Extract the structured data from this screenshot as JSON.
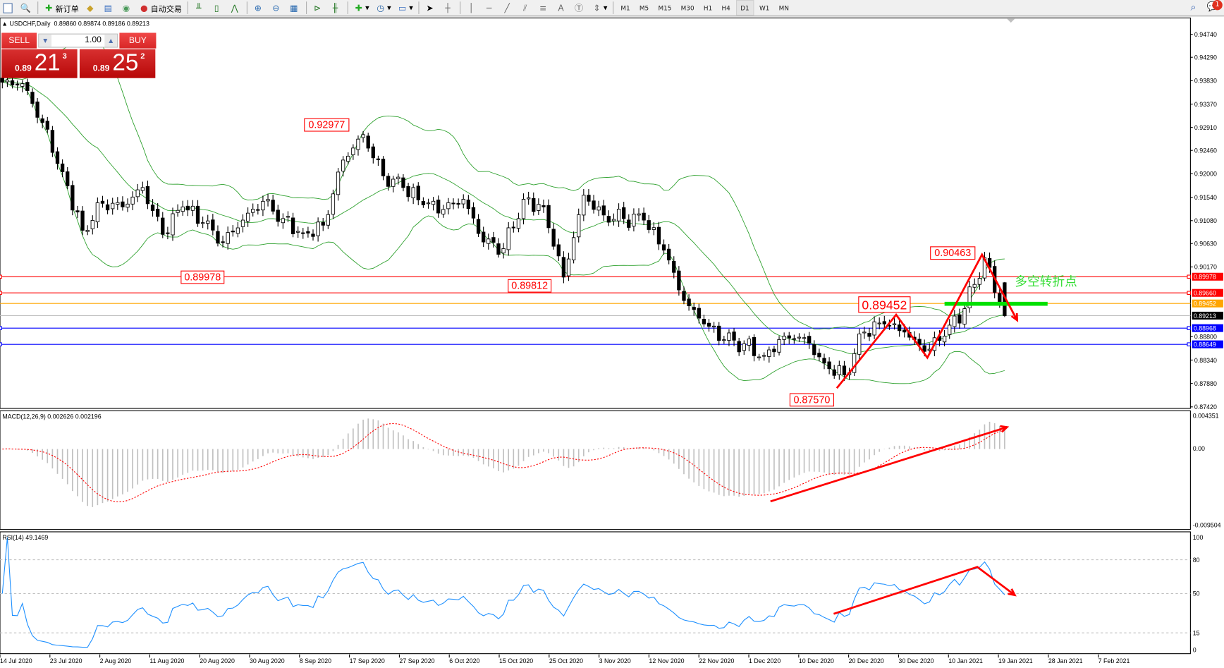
{
  "toolbar": {
    "items": [
      {
        "icon": "market-watch-icon",
        "label": ""
      },
      {
        "icon": "navigator-icon",
        "label": ""
      },
      {
        "icon": "new-order-icon",
        "label": "新订单"
      },
      {
        "icon": "metaeditor-icon",
        "label": ""
      },
      {
        "icon": "terminal-icon",
        "label": ""
      },
      {
        "icon": "signals-icon",
        "label": ""
      },
      {
        "icon": "auto-trading-icon",
        "label": "自动交易"
      }
    ],
    "chart_tools": [
      "bar-chart-icon",
      "candlestick-icon",
      "line-chart-icon",
      "zoom-in-icon",
      "zoom-out-icon",
      "tile-windows-icon",
      "chart-shift-icon",
      "autoscroll-icon",
      "indicators-icon",
      "periods-icon",
      "templates-icon",
      "cursor-icon",
      "crosshair-icon",
      "vertical-line-icon",
      "horizontal-line-icon",
      "trendline-icon",
      "equidistant-channel-icon",
      "fibonacci-icon",
      "text-icon",
      "text-label-icon",
      "arrows-icon"
    ],
    "timeframes": [
      "M1",
      "M5",
      "M15",
      "M30",
      "H1",
      "H4",
      "D1",
      "W1",
      "MN"
    ],
    "active_timeframe": "D1",
    "notifications": "1"
  },
  "chart": {
    "title": "USDCHF,Daily",
    "ohlc": "0.89860 0.89874 0.89186 0.89213",
    "symbol": "USDCHF",
    "period": "Daily"
  },
  "trade_panel": {
    "sell_label": "SELL",
    "buy_label": "BUY",
    "lot": "1.00",
    "sell_price": {
      "prefix": "0.89",
      "big": "21",
      "sup": "3"
    },
    "buy_price": {
      "prefix": "0.89",
      "big": "25",
      "sup": "2"
    },
    "color": "#d82626"
  },
  "macd": {
    "title": "MACD(12,26,9) 0.002626 0.002196",
    "axis_labels": [
      "0.004351",
      "0.00",
      "-0.009504"
    ]
  },
  "rsi": {
    "title": "RSI(14) 49.1469",
    "axis_labels": [
      "100",
      "80",
      "50",
      "15",
      "0"
    ]
  },
  "chart_data": {
    "type": "candlestick",
    "price_axis_labels": [
      "0.94740",
      "0.94290",
      "0.93830",
      "0.93370",
      "0.92910",
      "0.92460",
      "0.92000",
      "0.91540",
      "0.91080",
      "0.90630",
      "0.90170",
      "0.88800",
      "0.88340",
      "0.87880",
      "0.87420"
    ],
    "ylim": [
      0.8742,
      0.9474
    ],
    "date_labels": [
      "14 Jul 2020",
      "23 Jul 2020",
      "2 Aug 2020",
      "11 Aug 2020",
      "20 Aug 2020",
      "30 Aug 2020",
      "8 Sep 2020",
      "17 Sep 2020",
      "27 Sep 2020",
      "6 Oct 2020",
      "15 Oct 2020",
      "25 Oct 2020",
      "3 Nov 2020",
      "12 Nov 2020",
      "22 Nov 2020",
      "1 Dec 2020",
      "10 Dec 2020",
      "20 Dec 2020",
      "30 Dec 2020",
      "10 Jan 2021",
      "19 Jan 2021",
      "28 Jan 2021",
      "7 Feb 2021"
    ],
    "approx_closes_every_4_bars": [
      0.938,
      0.9377,
      0.9301,
      0.9204,
      0.9089,
      0.9142,
      0.9135,
      0.9173,
      0.9081,
      0.9135,
      0.9104,
      0.9066,
      0.9109,
      0.9146,
      0.9112,
      0.9084,
      0.9099,
      0.9227,
      0.9277,
      0.9196,
      0.9173,
      0.9139,
      0.913,
      0.915,
      0.9066,
      0.9053,
      0.915,
      0.9135,
      0.8997,
      0.9158,
      0.9119,
      0.9112,
      0.9109,
      0.905,
      0.8951,
      0.8905,
      0.8874,
      0.8866,
      0.8843,
      0.8881,
      0.8878,
      0.8828,
      0.8805,
      0.8889,
      0.8905,
      0.8889,
      0.8851,
      0.8881,
      0.8935,
      0.9035,
      0.8921
    ],
    "last_bar": {
      "open": 0.8986,
      "high": 0.89874,
      "low": 0.89186,
      "close": 0.89213
    },
    "indicators": [
      "Bollinger Bands(20,2)",
      "MACD(12,26,9)",
      "RSI(14)"
    ],
    "colors": {
      "bullish": "#ffffff",
      "bearish": "#000000",
      "bands": "#2ca02c",
      "macd_hist": "#c0c0c0",
      "macd_signal": "#ff0000",
      "rsi": "#1e90ff"
    }
  },
  "levels": [
    {
      "price": "0.89978",
      "color": "#ff0000"
    },
    {
      "price": "0.89660",
      "color": "#ff0000"
    },
    {
      "price": "0.89452",
      "color": "#ffa500"
    },
    {
      "price": "0.89213",
      "color": "#000000"
    },
    {
      "price": "0.88968",
      "color": "#0000ff"
    },
    {
      "price": "0.88649",
      "color": "#0000ff"
    }
  ],
  "annotations": {
    "price_labels": [
      {
        "text": "0.92977",
        "price": 0.92977
      },
      {
        "text": "0.89978",
        "price": 0.89978
      },
      {
        "text": "0.89812",
        "price": 0.89812
      },
      {
        "text": "0.87570",
        "price": 0.8757
      },
      {
        "text": "0.89452",
        "price": 0.89452
      },
      {
        "text": "0.90463",
        "price": 0.90463
      }
    ],
    "turning_point_text": "多空转折点",
    "arrow_color": "#ff0000",
    "turning_line_color": "#00e000"
  }
}
